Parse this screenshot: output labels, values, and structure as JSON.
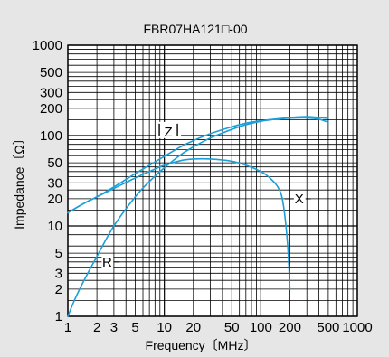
{
  "chart_data": {
    "type": "line",
    "title": "FBR07HA121□-00",
    "xlabel": "Frequency〔MHz〕",
    "ylabel": "Impedance〔Ω〕",
    "xscale": "log",
    "yscale": "log",
    "xlim": [
      1,
      1000
    ],
    "ylim": [
      1,
      1000
    ],
    "x_ticks": [
      1,
      2,
      3,
      5,
      10,
      20,
      50,
      100,
      200,
      500,
      1000
    ],
    "x_tick_labels": [
      "1",
      "2",
      "3",
      "5",
      "10",
      "20",
      "50",
      "100",
      "200",
      "500",
      "1000"
    ],
    "y_ticks": [
      1,
      2,
      3,
      5,
      10,
      20,
      30,
      50,
      100,
      200,
      300,
      500,
      1000
    ],
    "y_tick_labels": [
      "1",
      "2",
      "3",
      "5",
      "10",
      "20",
      "30",
      "50",
      "100",
      "200",
      "300",
      "500",
      "1000"
    ],
    "grid": true,
    "line_color": "#1a9fd8",
    "background": "#e6e6e6",
    "plot_background": "#ffffff",
    "series": [
      {
        "name": "Z",
        "x": [
          1,
          1.5,
          2,
          3,
          5,
          7,
          10,
          15,
          20,
          30,
          50,
          70,
          100,
          150,
          200,
          300,
          400,
          500
        ],
        "y": [
          14,
          18,
          21,
          27,
          38,
          47,
          59,
          76,
          88,
          105,
          125,
          137,
          146,
          153,
          156,
          157,
          152,
          140
        ]
      },
      {
        "name": "X",
        "x": [
          1,
          1.5,
          2,
          3,
          5,
          7,
          10,
          15,
          20,
          30,
          50,
          70,
          100,
          120,
          150,
          170,
          190,
          200
        ],
        "y": [
          14,
          18,
          21,
          26,
          34,
          40,
          47,
          53,
          55,
          55,
          52,
          47,
          40,
          35,
          27,
          18,
          6,
          2
        ]
      },
      {
        "name": "R",
        "x": [
          1,
          1.2,
          1.5,
          2,
          3,
          5,
          7,
          10,
          15,
          20,
          30,
          50,
          70,
          100,
          150,
          200,
          300,
          500
        ],
        "y": [
          1,
          1.6,
          2.6,
          4.6,
          10,
          21,
          31,
          44,
          62,
          75,
          94,
          117,
          132,
          144,
          153,
          158,
          162,
          155
        ]
      }
    ],
    "annotations": [
      {
        "text": "Z",
        "x": 11,
        "y": 110
      },
      {
        "text": "X",
        "x": 250,
        "y": 20
      },
      {
        "text": "R",
        "x": 2.55,
        "y": 4
      }
    ]
  }
}
